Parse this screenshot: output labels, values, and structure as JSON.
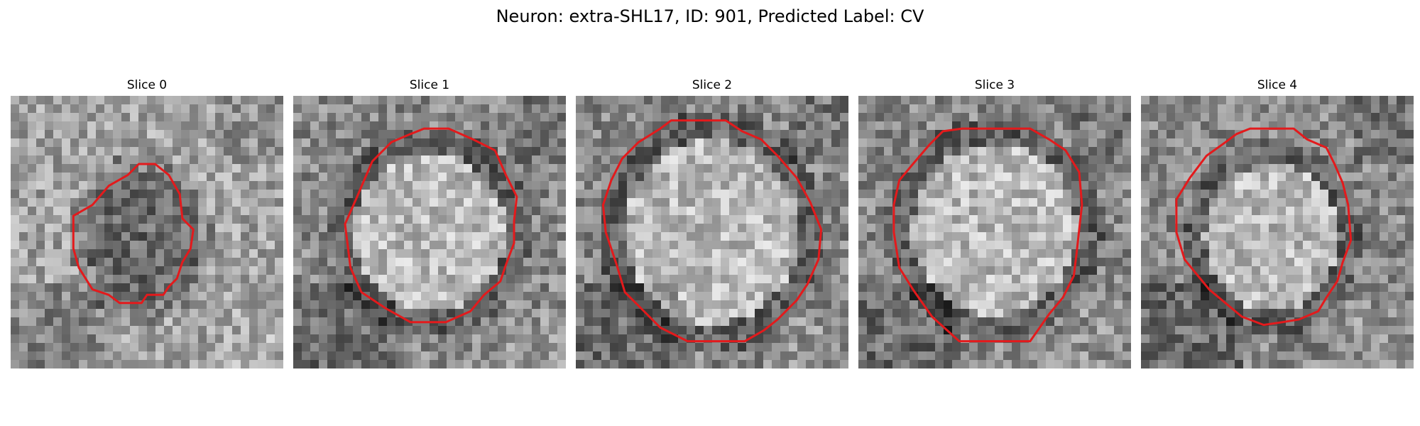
{
  "figure": {
    "title": "Neuron: extra-SHL17, ID: 901, Predicted Label: CV"
  },
  "colors": {
    "contour": "#e31a1c",
    "colormap": "grayscale"
  },
  "slices": [
    {
      "label": "Slice 0",
      "variant": "small-dark-region"
    },
    {
      "label": "Slice 1",
      "variant": "large-bright-region"
    },
    {
      "label": "Slice 2",
      "variant": "large-bright-region"
    },
    {
      "label": "Slice 3",
      "variant": "large-bright-region"
    },
    {
      "label": "Slice 4",
      "variant": "medium-bright-region"
    }
  ]
}
